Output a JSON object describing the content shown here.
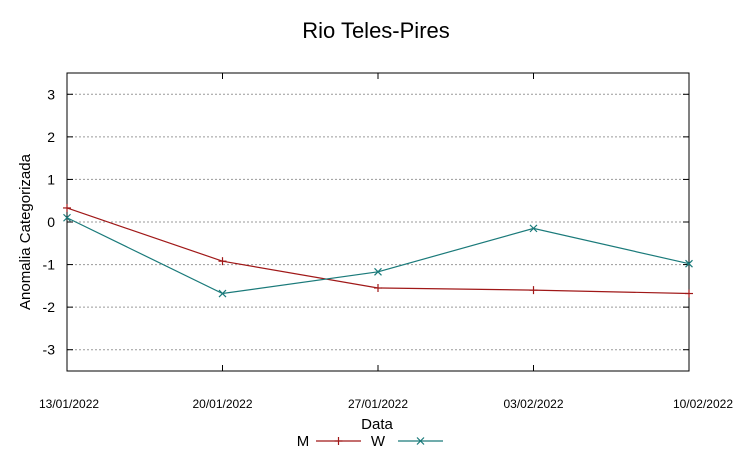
{
  "chart_data": {
    "type": "line",
    "title": "Rio Teles-Pires",
    "xlabel": "Data",
    "ylabel": "Anomalia Categorizada",
    "categories": [
      "13/01/2022",
      "20/01/2022",
      "27/01/2022",
      "03/02/2022",
      "10/02/2022"
    ],
    "yticks": [
      3,
      2,
      1,
      0,
      -1,
      -2,
      -3
    ],
    "ytick_labels": [
      "3",
      "2",
      "1",
      "0",
      "-1",
      "-2",
      "-3"
    ],
    "ylim": [
      -3.5,
      3.5
    ],
    "grid": true,
    "legend_position": "bottom-center",
    "series": [
      {
        "name": "M",
        "color": "#a01818",
        "marker": "plus",
        "values": [
          0.33,
          -0.92,
          -1.55,
          -1.6,
          -1.68
        ]
      },
      {
        "name": "W",
        "color": "#1a7a7a",
        "marker": "cross",
        "values": [
          0.1,
          -1.68,
          -1.17,
          -0.15,
          -0.98
        ]
      }
    ]
  }
}
